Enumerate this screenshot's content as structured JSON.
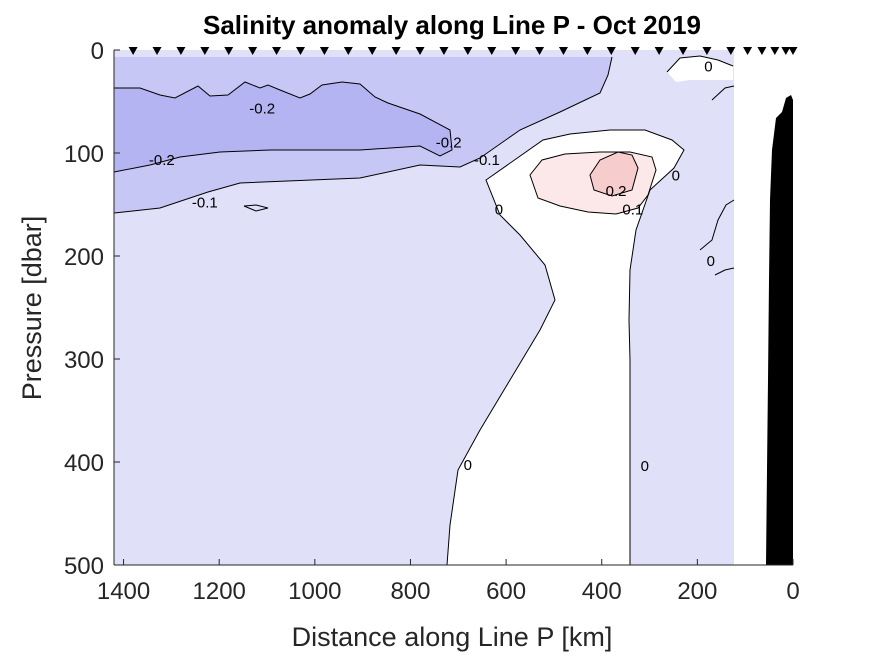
{
  "chart_data": {
    "type": "contour",
    "title": "Salinity anomaly along Line P - Oct 2019",
    "xlabel": "Distance along Line P [km]",
    "ylabel": "Pressure [dbar]",
    "x_reversed": true,
    "y_reversed": true,
    "xlim": [
      0,
      1420
    ],
    "ylim": [
      0,
      500
    ],
    "x_ticks": [
      1400,
      1200,
      1000,
      800,
      600,
      400,
      200,
      0
    ],
    "y_ticks": [
      0,
      100,
      200,
      300,
      400,
      500
    ],
    "station_distances_km": [
      1380,
      1330,
      1280,
      1230,
      1180,
      1130,
      1080,
      1030,
      980,
      930,
      880,
      830,
      780,
      730,
      680,
      630,
      580,
      530,
      480,
      430,
      380,
      330,
      280,
      230,
      180,
      130,
      95,
      65,
      38,
      15,
      0
    ],
    "colors": {
      "neg_0_1": "#e0e0f8",
      "neg_0_2": "#c7c7f6",
      "neg_0_3": "#b4b4f2",
      "near_zero": "#ffffff",
      "pos_0_1": "#fce8e8",
      "pos_0_2": "#f7cccc",
      "bathymetry": "#000000"
    },
    "contour_labels": [
      {
        "text": "-0.2",
        "x_km": 1110,
        "p_dbar": 57
      },
      {
        "text": "-0.2",
        "x_km": 1320,
        "p_dbar": 107
      },
      {
        "text": "-0.1",
        "x_km": 1230,
        "p_dbar": 148
      },
      {
        "text": "-0.2",
        "x_km": 720,
        "p_dbar": 90
      },
      {
        "text": "-0.1",
        "x_km": 640,
        "p_dbar": 107
      },
      {
        "text": "0.2",
        "x_km": 370,
        "p_dbar": 137
      },
      {
        "text": "0.1",
        "x_km": 335,
        "p_dbar": 155
      },
      {
        "text": "0",
        "x_km": 615,
        "p_dbar": 155
      },
      {
        "text": "0",
        "x_km": 245,
        "p_dbar": 122
      },
      {
        "text": "0",
        "x_km": 177,
        "p_dbar": 16
      },
      {
        "text": "0",
        "x_km": 172,
        "p_dbar": 205
      },
      {
        "text": "0",
        "x_km": 680,
        "p_dbar": 403
      },
      {
        "text": "0",
        "x_km": 310,
        "p_dbar": 404
      }
    ]
  }
}
